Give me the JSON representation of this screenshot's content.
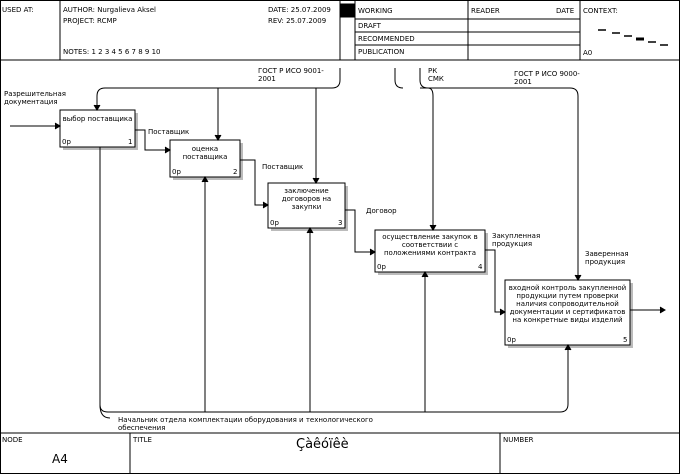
{
  "header": {
    "used_at": "USED AT:",
    "author": "AUTHOR: Nurgalieva Aksel",
    "project": "PROJECT: RCMP",
    "notes": "NOTES: 1 2 3 4 5 6 7 8 9 10",
    "date": "DATE: 25.07.2009",
    "rev": "REV: 25.07.2009",
    "working": "WORKING",
    "draft": "DRAFT",
    "recommended": "RECOMMENDED",
    "publication": "PUBLICATION",
    "reader": "READER",
    "reader_date": "DATE",
    "context": "CONTEXT:",
    "context_node": "A0"
  },
  "nodes": [
    {
      "label": "выбор поставщика",
      "cost": "0р",
      "number": "1"
    },
    {
      "label": "оценка поставщика",
      "cost": "0р",
      "number": "2"
    },
    {
      "label": "заключение договоров на закупки",
      "cost": "0р",
      "number": "3"
    },
    {
      "label": "осуществление закупок в соответствии с положениями контракта",
      "cost": "0р",
      "number": "4"
    },
    {
      "label": "входной контроль закупленной продукции путем проверки наличия сопроводительной документации и сертификатов на конкретные виды изделий",
      "cost": "0р",
      "number": "5"
    }
  ],
  "arrow_labels": {
    "input": "Разрешительная документация",
    "supplier_1": "Поставщик",
    "supplier_2": "Поставщик",
    "contract": "Договор",
    "purchased": "Закупленная продукция",
    "verified": "Заверенная продукция",
    "gost_9001": "ГОСТ Р ИСО 9001-2001",
    "rk_smk": "РК СМК",
    "gost_9000": "ГОСТ Р ИСО 9000-2001",
    "mechanism": "Начальник отдела комплектации оборудования и технологического обеспечения"
  },
  "footer": {
    "node": "NODE",
    "node_value": "A4",
    "title": "TITLE",
    "title_value": "Çàêóïêè",
    "number": "NUMBER"
  }
}
